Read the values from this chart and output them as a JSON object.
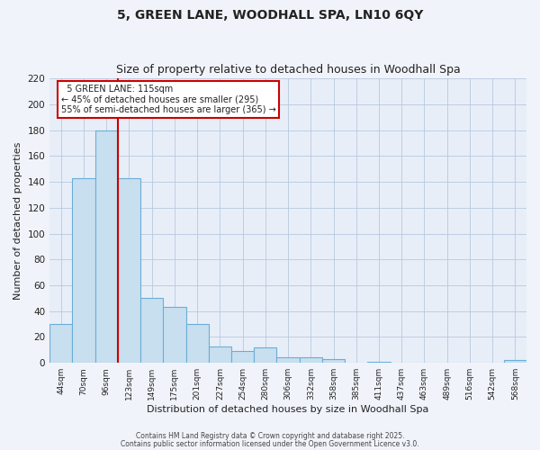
{
  "title1": "5, GREEN LANE, WOODHALL SPA, LN10 6QY",
  "title2": "Size of property relative to detached houses in Woodhall Spa",
  "xlabel": "Distribution of detached houses by size in Woodhall Spa",
  "ylabel": "Number of detached properties",
  "bar_labels": [
    "44sqm",
    "70sqm",
    "96sqm",
    "123sqm",
    "149sqm",
    "175sqm",
    "201sqm",
    "227sqm",
    "254sqm",
    "280sqm",
    "306sqm",
    "332sqm",
    "358sqm",
    "385sqm",
    "411sqm",
    "437sqm",
    "463sqm",
    "489sqm",
    "516sqm",
    "542sqm",
    "568sqm"
  ],
  "bar_values": [
    30,
    143,
    180,
    143,
    50,
    43,
    30,
    13,
    9,
    12,
    4,
    4,
    3,
    0,
    1,
    0,
    0,
    0,
    0,
    0,
    2
  ],
  "bar_color": "#c8dff0",
  "bar_edge_color": "#6aaed6",
  "vline_color": "#cc0000",
  "vline_x": 2.5,
  "ylim": [
    0,
    220
  ],
  "yticks": [
    0,
    20,
    40,
    60,
    80,
    100,
    120,
    140,
    160,
    180,
    200,
    220
  ],
  "annotation_title": "5 GREEN LANE: 115sqm",
  "annotation_line1": "← 45% of detached houses are smaller (295)",
  "annotation_line2": "55% of semi-detached houses are larger (365) →",
  "footer1": "Contains HM Land Registry data © Crown copyright and database right 2025.",
  "footer2": "Contains public sector information licensed under the Open Government Licence v3.0.",
  "bg_color": "#f0f4fa",
  "plot_bg_color": "#e8eef8",
  "grid_color": "#b8c8e0",
  "annotation_box_color": "#ffffff",
  "annotation_box_edge": "#cc0000",
  "title1_fontsize": 10,
  "title2_fontsize": 9
}
